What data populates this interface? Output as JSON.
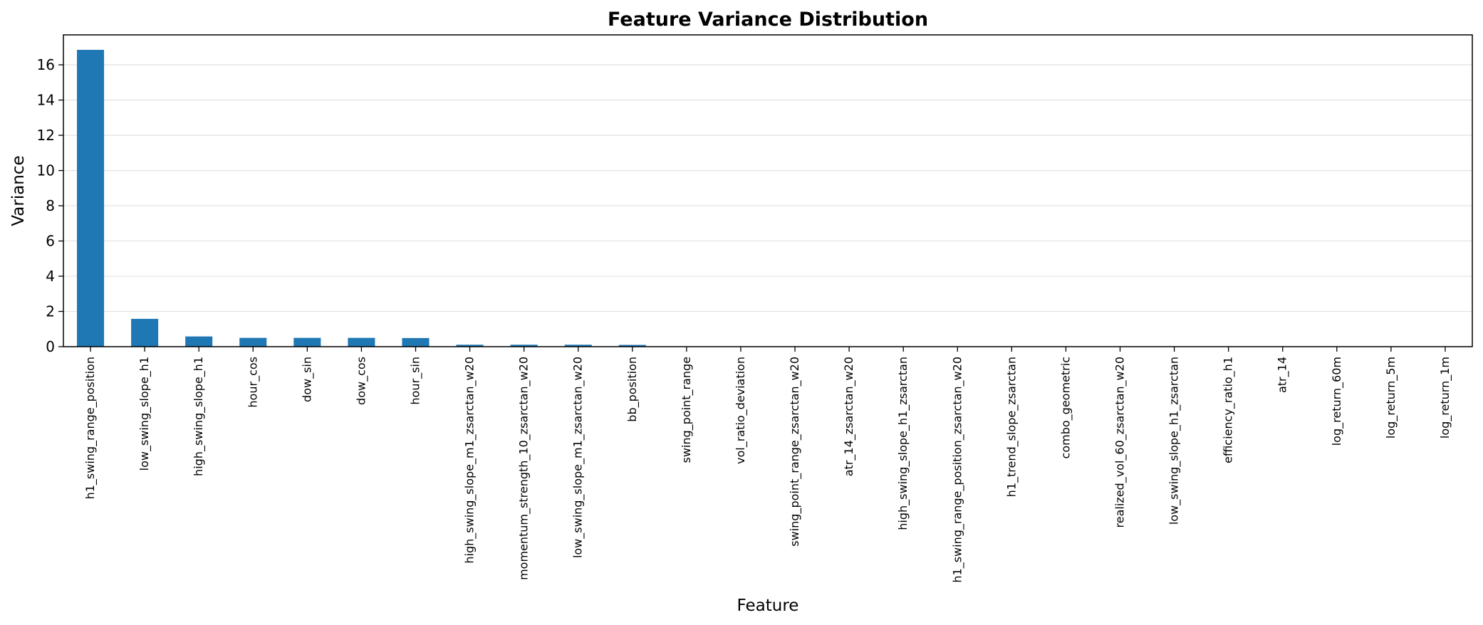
{
  "chart_data": {
    "type": "bar",
    "title": "Feature Variance Distribution",
    "xlabel": "Feature",
    "ylabel": "Variance",
    "ylim": [
      0,
      17.7
    ],
    "yticks": [
      0,
      2,
      4,
      6,
      8,
      10,
      12,
      14,
      16
    ],
    "grid": "y",
    "bar_color": "#1f77b4",
    "categories": [
      "h1_swing_range_position",
      "low_swing_slope_h1",
      "high_swing_slope_h1",
      "hour_cos",
      "dow_sin",
      "dow_cos",
      "hour_sin",
      "high_swing_slope_m1_zsarctan_w20",
      "momentum_strength_10_zsarctan_w20",
      "low_swing_slope_m1_zsarctan_w20",
      "bb_position",
      "swing_point_range",
      "vol_ratio_deviation",
      "swing_point_range_zsarctan_w20",
      "atr_14_zsarctan_w20",
      "high_swing_slope_h1_zsarctan",
      "h1_swing_range_position_zsarctan_w20",
      "h1_trend_slope_zsarctan",
      "combo_geometric",
      "realized_vol_60_zsarctan_w20",
      "low_swing_slope_h1_zsarctan",
      "efficiency_ratio_h1",
      "atr_14",
      "log_return_60m",
      "log_return_5m",
      "log_return_1m"
    ],
    "values": [
      16.85,
      1.58,
      0.58,
      0.5,
      0.5,
      0.5,
      0.49,
      0.11,
      0.11,
      0.11,
      0.1,
      0.02,
      0.02,
      0.02,
      0.02,
      0.02,
      0.02,
      0.02,
      0.01,
      0.01,
      0.01,
      0.01,
      0.005,
      0.001,
      0.001,
      0.001
    ]
  }
}
